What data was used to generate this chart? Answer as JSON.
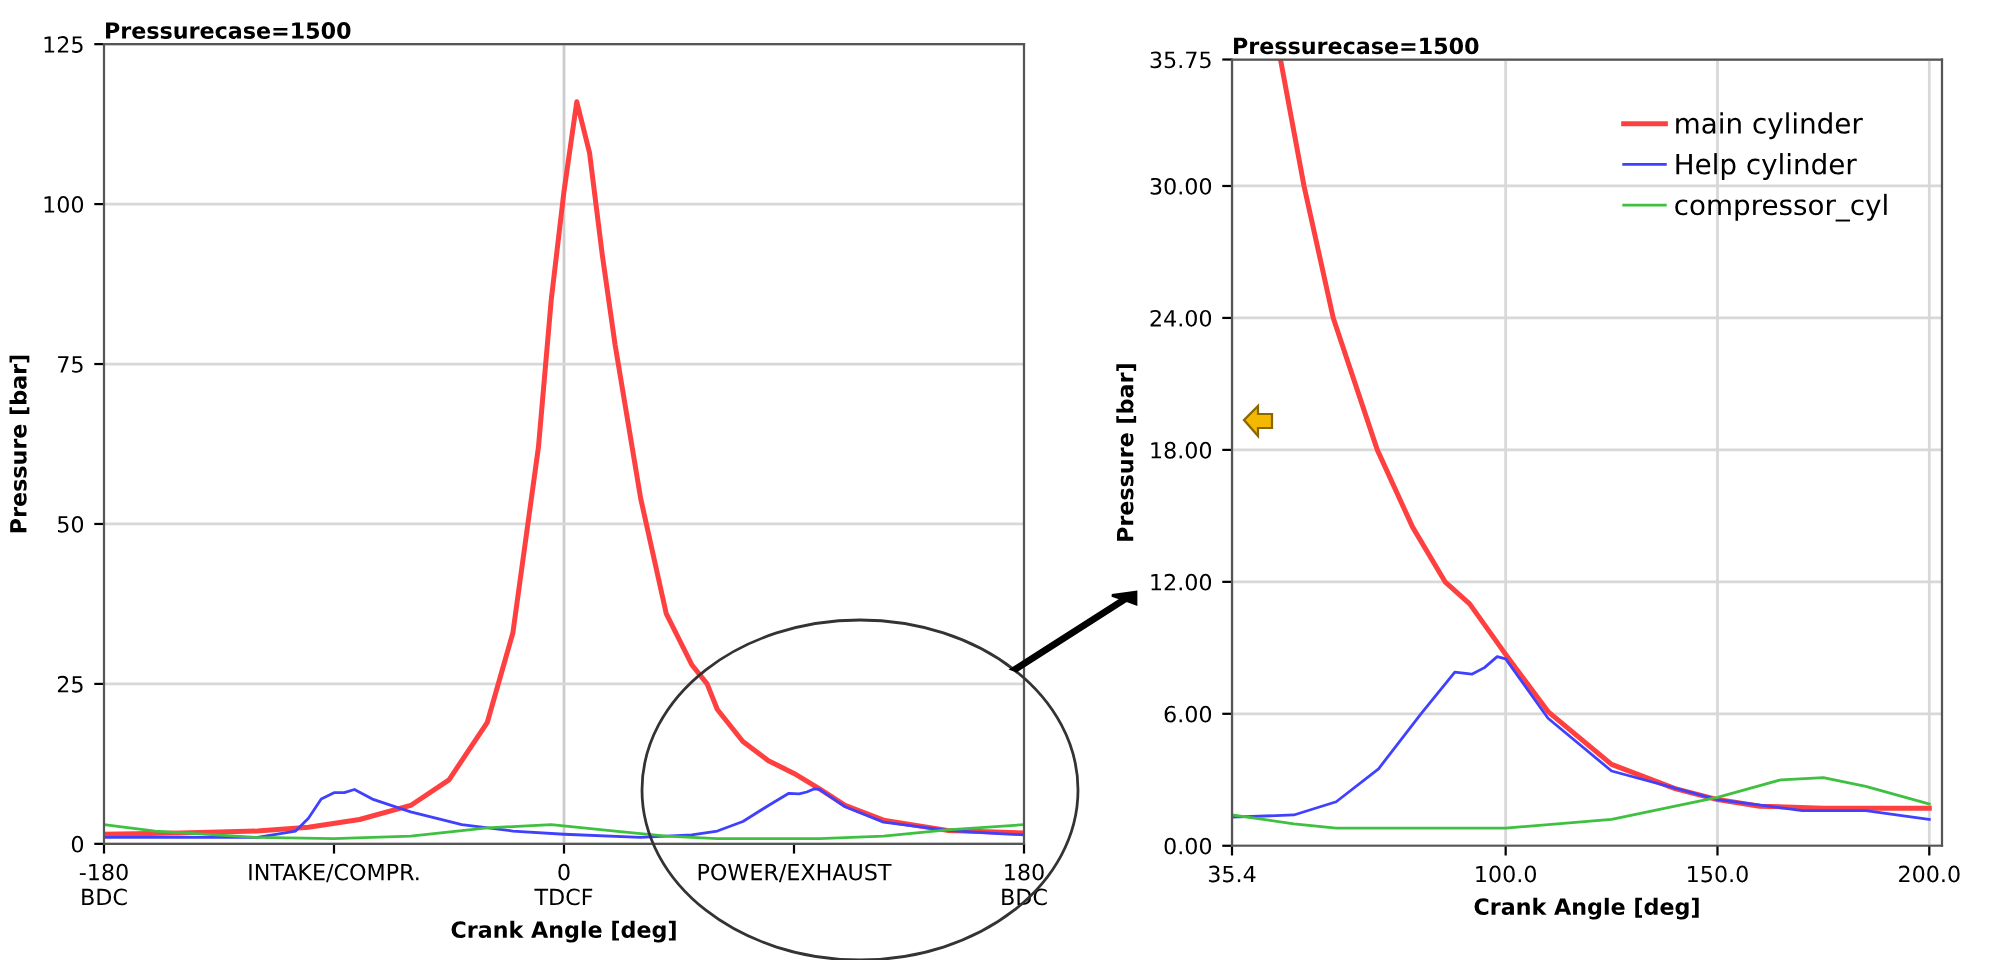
{
  "chart_data": [
    {
      "type": "line",
      "title": "Pressurecase=1500",
      "xlabel": "Crank Angle [deg]",
      "ylabel": "Pressure [bar]",
      "xlim": [
        -180,
        180
      ],
      "xticks": [
        {
          "value": -180,
          "label": "-180\nBDC"
        },
        {
          "value": -90,
          "label": "INTAKE/COMPR."
        },
        {
          "value": 0,
          "label": "0\nTDCF"
        },
        {
          "value": 90,
          "label": "POWER/EXHAUST"
        },
        {
          "value": 180,
          "label": "180\nBDC"
        }
      ],
      "ylim": [
        0,
        125
      ],
      "yticks": [
        0,
        25,
        50,
        75,
        100,
        125
      ],
      "grid": "y",
      "ref_lines": [
        {
          "axis": "x",
          "value": 0,
          "color": "#cccccc"
        }
      ],
      "legend": false,
      "series": [
        {
          "color": "#ff4040",
          "x": [
            -180,
            -150,
            -120,
            -100,
            -80,
            -60,
            -45,
            -30,
            -20,
            -10,
            -5,
            0,
            5,
            10,
            15,
            20,
            30,
            40,
            50,
            56,
            60,
            70,
            80,
            90,
            100,
            110,
            125,
            150,
            180
          ],
          "values": [
            1.5,
            1.7,
            2.0,
            2.6,
            3.8,
            6,
            10,
            19,
            33,
            62,
            85,
            102,
            116,
            108,
            92,
            78,
            54,
            36,
            28,
            25,
            21,
            16,
            13,
            11,
            8.6,
            6,
            3.7,
            2.1,
            1.7
          ]
        },
        {
          "color": "#4040ff",
          "x": [
            -180,
            -150,
            -120,
            -105,
            -100,
            -95,
            -90,
            -86,
            -82,
            -75,
            -60,
            -40,
            -20,
            0,
            30,
            50,
            60,
            70,
            80,
            88,
            92,
            95,
            98,
            100,
            110,
            125,
            150,
            170,
            180
          ],
          "values": [
            1,
            1,
            1,
            2,
            4,
            7,
            8,
            8,
            8.5,
            7,
            5,
            3,
            2,
            1.5,
            1,
            1.4,
            2,
            3.5,
            6,
            7.9,
            7.8,
            8.1,
            8.6,
            8.5,
            5.8,
            3.4,
            2.1,
            1.6,
            1.4
          ]
        },
        {
          "color": "#40c040",
          "x": [
            -180,
            -160,
            -120,
            -90,
            -60,
            -30,
            -5,
            20,
            40,
            60,
            100,
            125,
            150,
            180
          ],
          "values": [
            3,
            2,
            1,
            0.8,
            1.2,
            2.5,
            3,
            2,
            1.2,
            0.8,
            0.8,
            1.2,
            2.2,
            3
          ]
        }
      ]
    },
    {
      "type": "line",
      "title": "Pressurecase=1500",
      "xlabel": "Crank Angle [deg]",
      "ylabel": "Pressure [bar]",
      "xlim": [
        35.4,
        203
      ],
      "xticks": [
        {
          "value": 35.4,
          "label": "35.4"
        },
        {
          "value": 100,
          "label": "100.0"
        },
        {
          "value": 150,
          "label": "150.0"
        },
        {
          "value": 200,
          "label": "200.0"
        }
      ],
      "ylim": [
        0,
        35.75
      ],
      "yticks": [
        {
          "value": 0,
          "label": "0.00"
        },
        {
          "value": 6,
          "label": "6.00"
        },
        {
          "value": 12,
          "label": "12.00"
        },
        {
          "value": 18,
          "label": "18.00"
        },
        {
          "value": 24,
          "label": "24.00"
        },
        {
          "value": 30,
          "label": "30.00"
        },
        35.75
      ],
      "grid": true,
      "legend": "top right",
      "series": [
        {
          "name": "main cylinder",
          "color": "#ff4040",
          "x": [
            46.9,
            52.4,
            59.3,
            69.7,
            78,
            85.7,
            91.5,
            100,
            110,
            125,
            140,
            150,
            160,
            175,
            200
          ],
          "values": [
            35.7,
            30,
            24,
            18,
            14.5,
            12,
            11,
            8.7,
            6.1,
            3.7,
            2.6,
            2.1,
            1.8,
            1.7,
            1.7
          ]
        },
        {
          "name": "Help cylinder",
          "color": "#4040ff",
          "x": [
            35.4,
            50,
            60,
            70,
            80,
            88,
            92,
            95,
            98,
            100,
            110,
            125,
            150,
            170,
            185,
            200
          ],
          "values": [
            1.3,
            1.4,
            2,
            3.5,
            6,
            7.9,
            7.8,
            8.1,
            8.6,
            8.5,
            5.8,
            3.4,
            2.1,
            1.6,
            1.6,
            1.2
          ]
        },
        {
          "name": "compressor_cyl",
          "color": "#40c040",
          "x": [
            35.4,
            50,
            60,
            100,
            125,
            140,
            150,
            165,
            175,
            185,
            200
          ],
          "values": [
            1.4,
            1.0,
            0.8,
            0.8,
            1.2,
            1.8,
            2.2,
            3.0,
            3.1,
            2.7,
            1.9
          ]
        }
      ]
    }
  ]
}
